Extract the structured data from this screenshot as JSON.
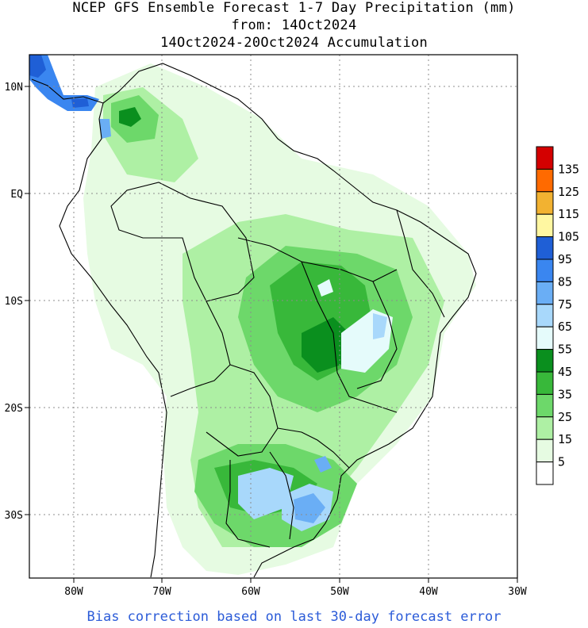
{
  "title": {
    "line1": "NCEP GFS Ensemble Forecast 1-7 Day Precipitation (mm)",
    "line2": "from: 14Oct2024",
    "line3": "14Oct2024-20Oct2024 Accumulation"
  },
  "footer": "Bias correction based on last 30-day forecast error",
  "axes": {
    "lon_ticks": [
      "80W",
      "70W",
      "60W",
      "50W",
      "40W",
      "30W"
    ],
    "lat_ticks": [
      "10N",
      "EQ",
      "10S",
      "20S",
      "30S"
    ]
  },
  "legend": {
    "labels": [
      "135",
      "125",
      "115",
      "105",
      "95",
      "85",
      "75",
      "65",
      "55",
      "45",
      "35",
      "25",
      "15",
      "5"
    ],
    "colors": [
      "#d40000",
      "#ff6a00",
      "#f2b231",
      "#fff7a1",
      "#1f5fd6",
      "#3a86f0",
      "#6aaef5",
      "#a8d8fb",
      "#e5fbfb",
      "#0a8f1e",
      "#38b83a",
      "#6dd86a",
      "#aef0a4",
      "#e6fbe2",
      "#ffffff"
    ]
  },
  "colors": {
    "land_border": "#000000",
    "grid": "#8c8c8c",
    "footer_text": "#2b5bd8"
  }
}
